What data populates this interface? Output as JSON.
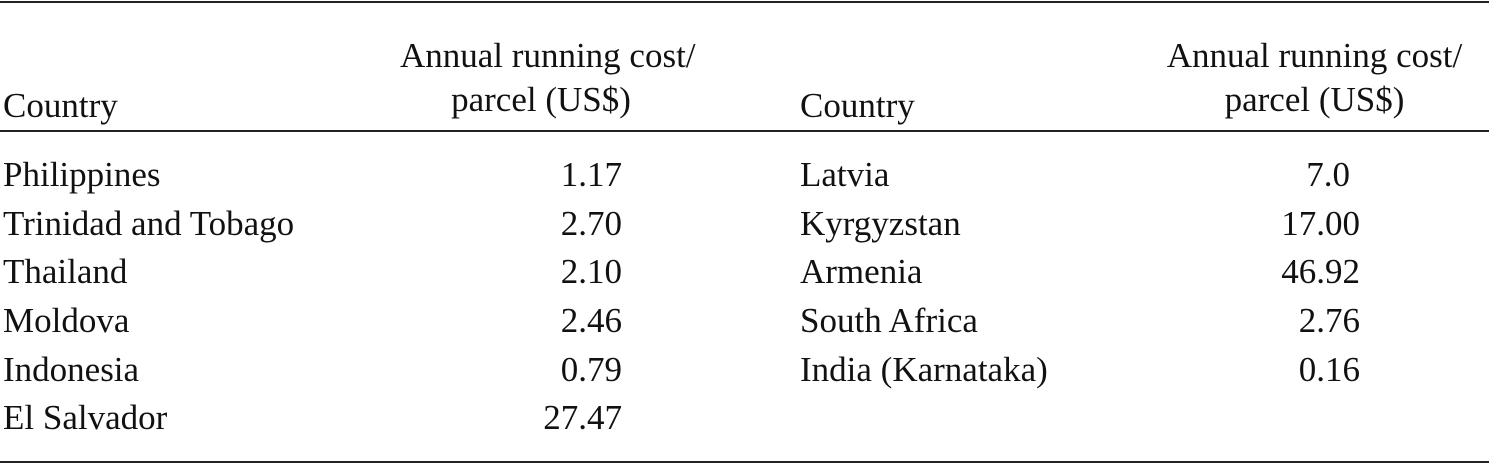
{
  "headers": {
    "country": "Country",
    "cost_line1": "Annual running cost/",
    "cost_line2": "parcel (US$)"
  },
  "left_rows": [
    {
      "country": "Philippines",
      "cost": "1.17"
    },
    {
      "country": "Trinidad and Tobago",
      "cost": "2.70"
    },
    {
      "country": "Thailand",
      "cost": "2.10"
    },
    {
      "country": "Moldova",
      "cost": "2.46"
    },
    {
      "country": "Indonesia",
      "cost": "0.79"
    },
    {
      "country": "El Salvador",
      "cost": "27.47"
    }
  ],
  "right_rows": [
    {
      "country": "Latvia",
      "cost": "7.0"
    },
    {
      "country": "Kyrgyzstan",
      "cost": "17.00"
    },
    {
      "country": "Armenia",
      "cost": "46.92"
    },
    {
      "country": "South Africa",
      "cost": "2.76"
    },
    {
      "country": "India (Karnataka)",
      "cost": "0.16"
    }
  ]
}
